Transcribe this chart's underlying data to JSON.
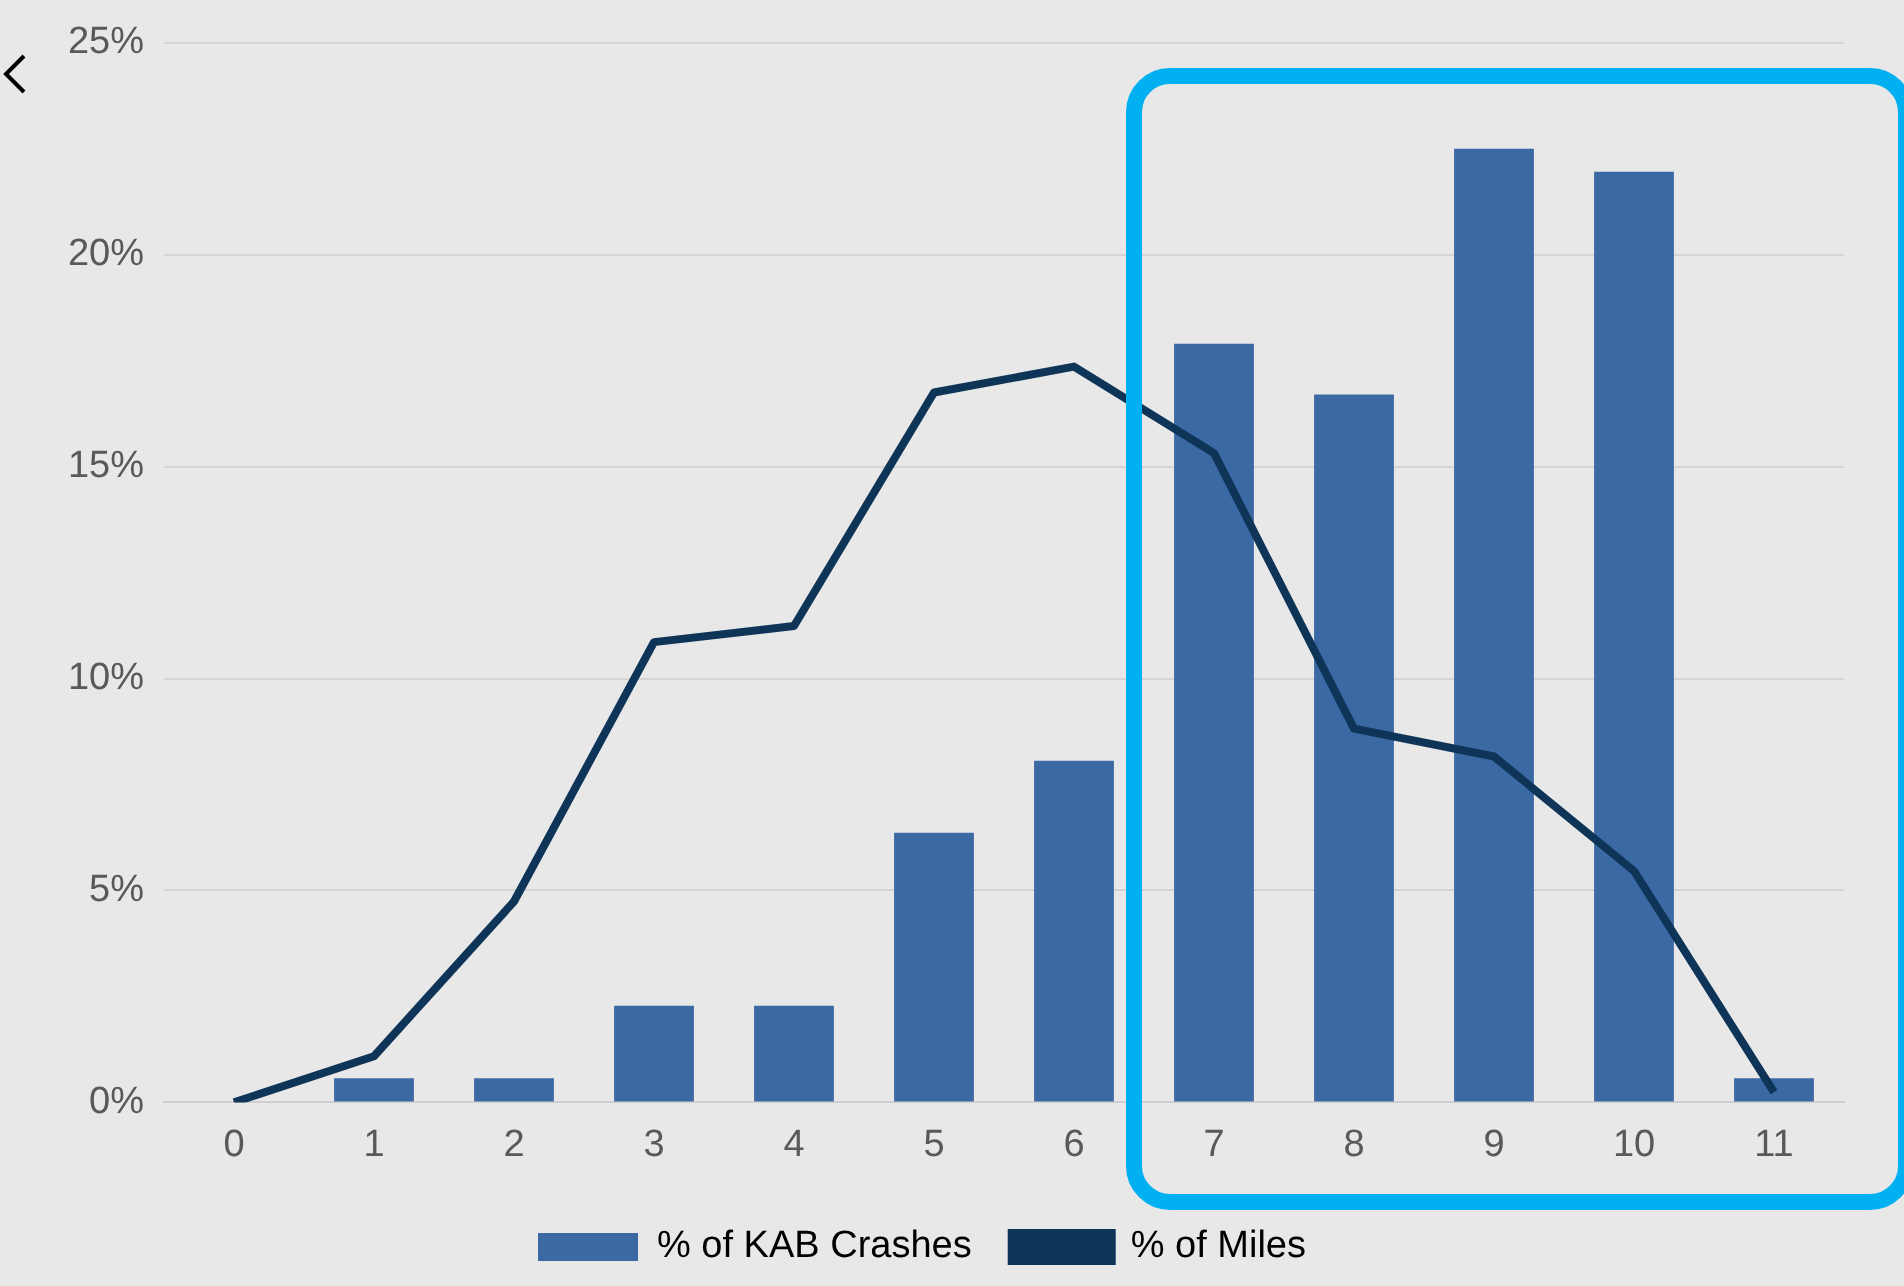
{
  "chart_data": {
    "type": "bar",
    "categories": [
      "0",
      "1",
      "2",
      "3",
      "4",
      "5",
      "6",
      "7",
      "8",
      "9",
      "10",
      "11"
    ],
    "series": [
      {
        "name": "% of KAB Crashes",
        "color": "#3a69a4",
        "values": [
          0,
          0.57,
          0.57,
          2.28,
          2.28,
          6.36,
          8.06,
          17.9,
          16.7,
          22.5,
          21.96,
          0.57
        ]
      },
      {
        "name": "% of Miles",
        "type": "line",
        "color": "#0e3558",
        "values": [
          0,
          1.09,
          4.74,
          10.86,
          11.24,
          16.75,
          17.36,
          15.32,
          8.82,
          8.16,
          5.46,
          0.24
        ]
      }
    ],
    "ylim": [
      0,
      25
    ],
    "yticks": [
      {
        "value": 0,
        "label": "0%"
      },
      {
        "value": 5,
        "label": "5%"
      },
      {
        "value": 10,
        "label": "10%"
      },
      {
        "value": 15,
        "label": "15%"
      },
      {
        "value": 20,
        "label": "20%"
      },
      {
        "value": 25,
        "label": "25%"
      }
    ],
    "grid": "y",
    "legend": "bottom",
    "marker": "none",
    "line_style": "solid"
  }
}
